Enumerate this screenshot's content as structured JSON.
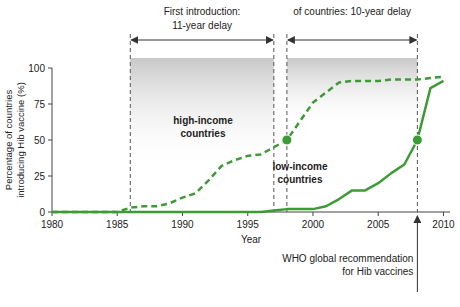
{
  "chart_data": {
    "type": "line",
    "x_label": "Year",
    "y_label": [
      "Percentage of countries",
      "introducing Hib vaccine (%)"
    ],
    "xlim": [
      1980,
      2010.5
    ],
    "ylim": [
      0,
      100
    ],
    "xticks": [
      1980,
      1985,
      1990,
      1995,
      2000,
      2005,
      2010
    ],
    "yticks": [
      0,
      25,
      50,
      75,
      100
    ],
    "grid": false,
    "x": [
      1980,
      1981,
      1982,
      1983,
      1984,
      1985,
      1986,
      1987,
      1988,
      1989,
      1990,
      1991,
      1992,
      1993,
      1994,
      1995,
      1996,
      1997,
      1998,
      1999,
      2000,
      2001,
      2002,
      2003,
      2004,
      2005,
      2006,
      2007,
      2008,
      2009,
      2010
    ],
    "series": [
      {
        "name": "high-income countries",
        "color": "#3d9b35",
        "line_style": "dashed",
        "values": [
          0,
          0,
          0,
          0,
          0,
          0,
          3,
          4,
          4,
          6,
          10,
          13,
          22,
          32,
          36,
          39,
          40,
          45,
          50,
          63,
          76,
          83,
          90,
          91,
          91,
          91,
          92,
          92,
          92,
          93,
          94
        ]
      },
      {
        "name": "low-income countries",
        "color": "#3d9b35",
        "line_style": "solid",
        "values": [
          0,
          0,
          0,
          0,
          0,
          0,
          0,
          0,
          0,
          0,
          0,
          0,
          0,
          0,
          0,
          0,
          0,
          1,
          2,
          2,
          2,
          4,
          9,
          15,
          15,
          20,
          27,
          33,
          50,
          86,
          91
        ]
      }
    ],
    "highlights": [
      {
        "x": 1998,
        "y": 50
      },
      {
        "x": 2008,
        "y": 50
      }
    ],
    "annotations": [
      {
        "text": [
          "First introduction:",
          "11-year delay"
        ],
        "x0": 1986,
        "x1": 1997
      },
      {
        "text": [
          "of countries: 10-year delay"
        ],
        "x0": 1998,
        "x1": 2008
      }
    ],
    "recommendation": {
      "text": [
        "WHO global recommendation",
        "for Hib vaccines"
      ],
      "x": 2008
    }
  }
}
